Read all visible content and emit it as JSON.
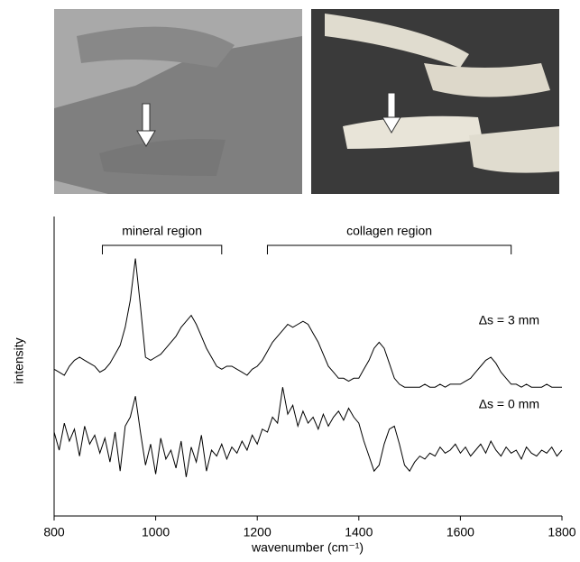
{
  "chart_data": {
    "type": "line",
    "xlabel": "wavenumber (cm⁻¹)",
    "ylabel": "intensity",
    "xlim": [
      800,
      1800
    ],
    "ylim": [
      0,
      100
    ],
    "xticks": [
      800,
      1000,
      1200,
      1400,
      1600,
      1800
    ],
    "annotations": [
      {
        "text": "mineral region",
        "x": [
          895,
          1130
        ]
      },
      {
        "text": "collagen region",
        "x": [
          1220,
          1700
        ]
      }
    ],
    "x": [
      800,
      810,
      820,
      830,
      840,
      850,
      860,
      870,
      880,
      890,
      900,
      910,
      920,
      930,
      940,
      950,
      960,
      970,
      980,
      990,
      1000,
      1010,
      1020,
      1030,
      1040,
      1050,
      1060,
      1070,
      1080,
      1090,
      1100,
      1110,
      1120,
      1130,
      1140,
      1150,
      1160,
      1170,
      1180,
      1190,
      1200,
      1210,
      1220,
      1230,
      1240,
      1250,
      1260,
      1270,
      1280,
      1290,
      1300,
      1310,
      1320,
      1330,
      1340,
      1350,
      1360,
      1370,
      1380,
      1390,
      1400,
      1410,
      1420,
      1430,
      1440,
      1450,
      1460,
      1470,
      1480,
      1490,
      1500,
      1510,
      1520,
      1530,
      1540,
      1550,
      1560,
      1570,
      1580,
      1590,
      1600,
      1610,
      1620,
      1630,
      1640,
      1650,
      1660,
      1670,
      1680,
      1690,
      1700,
      1710,
      1720,
      1730,
      1740,
      1750,
      1760,
      1770,
      1780,
      1790,
      1800
    ],
    "series": [
      {
        "name": "Δs = 3 mm",
        "color": "#000000",
        "values": [
          49,
          48,
          47,
          50,
          52,
          53,
          52,
          51,
          50,
          48,
          49,
          51,
          54,
          57,
          63,
          72,
          86,
          70,
          53,
          52,
          53,
          54,
          56,
          58,
          60,
          63,
          65,
          67,
          64,
          60,
          56,
          53,
          50,
          49,
          50,
          50,
          49,
          48,
          47,
          49,
          50,
          52,
          55,
          58,
          60,
          62,
          64,
          63,
          64,
          65,
          64,
          61,
          58,
          54,
          50,
          48,
          46,
          46,
          45,
          46,
          46,
          49,
          52,
          56,
          58,
          56,
          51,
          46,
          44,
          43,
          43,
          43,
          43,
          44,
          43,
          43,
          44,
          43,
          44,
          44,
          44,
          45,
          46,
          48,
          50,
          52,
          53,
          51,
          48,
          46,
          44,
          44,
          43,
          44,
          43,
          43,
          43,
          44,
          43,
          43,
          43
        ]
      },
      {
        "name": "Δs = 0 mm",
        "color": "#000000",
        "values": [
          28,
          22,
          31,
          25,
          29,
          20,
          30,
          24,
          27,
          21,
          26,
          18,
          28,
          15,
          30,
          33,
          40,
          28,
          17,
          24,
          14,
          26,
          19,
          22,
          16,
          25,
          13,
          23,
          18,
          27,
          15,
          22,
          20,
          24,
          19,
          23,
          21,
          25,
          22,
          27,
          24,
          29,
          28,
          33,
          31,
          43,
          34,
          37,
          30,
          35,
          31,
          33,
          29,
          34,
          30,
          33,
          35,
          32,
          36,
          33,
          31,
          25,
          20,
          15,
          17,
          24,
          29,
          30,
          24,
          17,
          15,
          18,
          20,
          19,
          21,
          20,
          23,
          21,
          22,
          24,
          21,
          23,
          20,
          22,
          24,
          21,
          25,
          22,
          20,
          23,
          21,
          22,
          19,
          23,
          21,
          20,
          22,
          21,
          23,
          20,
          22
        ]
      }
    ]
  }
}
